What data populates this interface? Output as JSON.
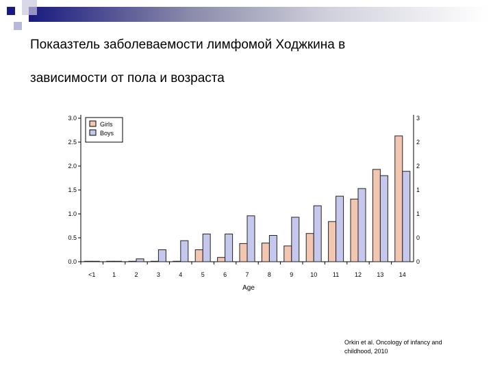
{
  "slide": {
    "title_line1": "Покаазтель заболеваемости лимфомой Ходжкина в",
    "title_line2": "зависимости от пола и возраста",
    "citation_line1": "Orkin et al. Oncology of infancy and",
    "citation_line2": "childhood, 2010"
  },
  "colors": {
    "girls": "#f2c6b0",
    "boys": "#c5c8ec",
    "header_dark": "#1a1a80"
  },
  "chart_data": {
    "type": "bar",
    "xlabel": "Age",
    "ylabel": "",
    "ylim": [
      0,
      3.0
    ],
    "yticks": [
      "0.0",
      "0.5",
      "1.0",
      "1.5",
      "2.0",
      "2.5",
      "3.0"
    ],
    "categories": [
      "<1",
      "1",
      "2",
      "3",
      "4",
      "5",
      "6",
      "7",
      "8",
      "9",
      "10",
      "11",
      "12",
      "13",
      "14"
    ],
    "legend_position": "top-left",
    "grid": false,
    "series": [
      {
        "name": "Girls",
        "values": [
          0.01,
          0.01,
          0.01,
          0.01,
          0.01,
          0.25,
          0.09,
          0.38,
          0.39,
          0.33,
          0.59,
          0.84,
          1.31,
          1.93,
          2.63
        ]
      },
      {
        "name": "Boys",
        "values": [
          0.01,
          0.01,
          0.06,
          0.25,
          0.44,
          0.58,
          0.58,
          0.96,
          0.55,
          0.93,
          1.17,
          1.37,
          1.53,
          1.8,
          1.89
        ]
      }
    ]
  }
}
